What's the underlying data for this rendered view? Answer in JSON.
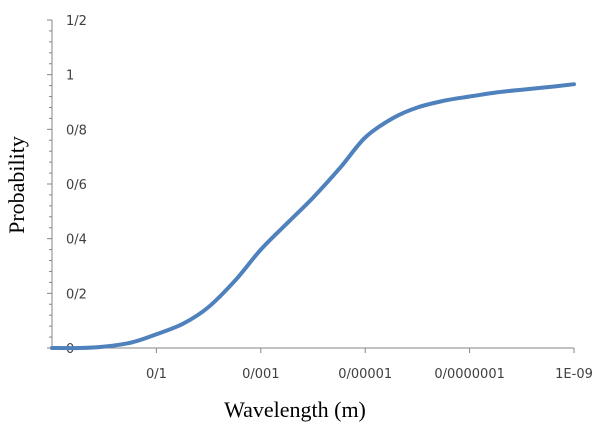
{
  "chart_data": {
    "type": "line",
    "title": "",
    "xlabel": "Wavelength (m)",
    "ylabel": "Probability",
    "x_scale": "log-reversed",
    "x_ticks": [
      {
        "label": "0/1",
        "value": 0.1
      },
      {
        "label": "0/001",
        "value": 0.001
      },
      {
        "label": "0/00001",
        "value": 1e-05
      },
      {
        "label": "0/0000001",
        "value": 1e-07
      },
      {
        "label": "1E-09",
        "value": 1e-09
      }
    ],
    "y_ticks": [
      "0",
      "0/2",
      "0/4",
      "0/6",
      "0/8",
      "1",
      "1/2"
    ],
    "ylim": [
      0,
      1.2
    ],
    "xlim": [
      10,
      1e-09
    ],
    "grid": false,
    "legend": "none",
    "line_color": "#4f81bd",
    "series": [
      {
        "x": [
          10,
          3,
          1,
          0.3,
          0.1,
          0.03,
          0.01,
          0.003,
          0.001,
          0.0003,
          0.0001,
          3e-05,
          1e-05,
          3e-06,
          1e-06,
          3e-07,
          1e-07,
          3e-08,
          1e-08,
          3e-09,
          1e-09
        ],
        "y": [
          0,
          0,
          0.005,
          0.02,
          0.05,
          0.09,
          0.15,
          0.25,
          0.36,
          0.46,
          0.55,
          0.66,
          0.77,
          0.84,
          0.88,
          0.905,
          0.92,
          0.935,
          0.945,
          0.955,
          0.965
        ]
      }
    ]
  }
}
